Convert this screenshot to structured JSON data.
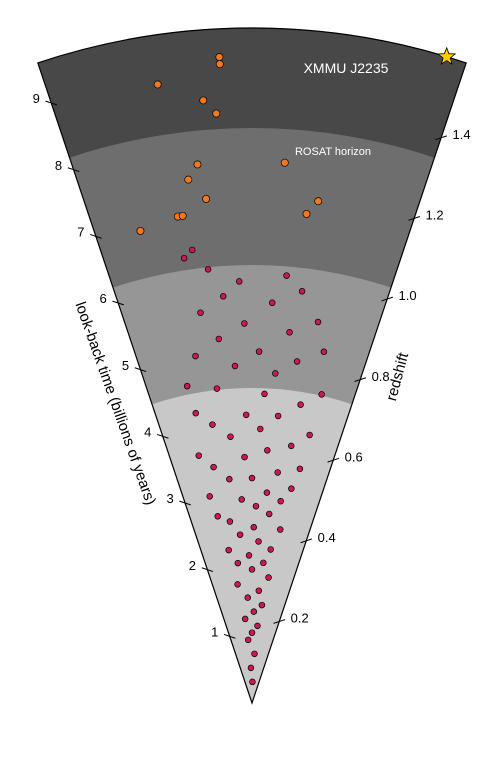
{
  "chart_data": {
    "type": "scatter",
    "title": "",
    "left_axis": {
      "label": "look-back time (billions of years)",
      "ticks": [
        "1",
        "2",
        "3",
        "4",
        "5",
        "6",
        "7",
        "8",
        "9"
      ]
    },
    "right_axis": {
      "label": "redshift",
      "ticks": [
        "0.2",
        "0.4",
        "0.6",
        "0.8",
        "1.0",
        "1.2",
        "1.4"
      ]
    },
    "bands": [
      {
        "name": "band-1",
        "color": "#c8c8c8"
      },
      {
        "name": "band-2",
        "color": "#969696"
      },
      {
        "name": "band-3",
        "color": "#6e6e6e"
      },
      {
        "name": "band-4",
        "color": "#484848"
      }
    ],
    "annotations": {
      "cluster_label": "XMMU J2235",
      "horizon_label": "ROSAT horizon"
    },
    "series": [
      {
        "color": "#cc1a4e",
        "points": [
          {
            "t": 0.3,
            "a": 0.02
          },
          {
            "t": 0.5,
            "a": -0.03
          },
          {
            "t": 0.7,
            "a": 0.05
          },
          {
            "t": 0.9,
            "a": -0.06
          },
          {
            "t": 1.0,
            "a": 0.0
          },
          {
            "t": 1.1,
            "a": 0.07
          },
          {
            "t": 1.2,
            "a": -0.08
          },
          {
            "t": 1.3,
            "a": 0.02
          },
          {
            "t": 1.4,
            "a": 0.1
          },
          {
            "t": 1.5,
            "a": -0.04
          },
          {
            "t": 1.6,
            "a": 0.06
          },
          {
            "t": 1.7,
            "a": -0.12
          },
          {
            "t": 1.8,
            "a": 0.13
          },
          {
            "t": 1.9,
            "a": 0.0
          },
          {
            "t": 2.0,
            "a": -0.1
          },
          {
            "t": 2.0,
            "a": 0.08
          },
          {
            "t": 2.1,
            "a": -0.02
          },
          {
            "t": 2.2,
            "a": 0.12
          },
          {
            "t": 2.2,
            "a": -0.15
          },
          {
            "t": 2.3,
            "a": 0.04
          },
          {
            "t": 2.4,
            "a": -0.07
          },
          {
            "t": 2.5,
            "a": 0.16
          },
          {
            "t": 2.5,
            "a": 0.01
          },
          {
            "t": 2.6,
            "a": -0.12
          },
          {
            "t": 2.7,
            "a": 0.09
          },
          {
            "t": 2.7,
            "a": -0.18
          },
          {
            "t": 2.8,
            "a": 0.02
          },
          {
            "t": 2.9,
            "a": 0.14
          },
          {
            "t": 2.9,
            "a": -0.05
          },
          {
            "t": 3.0,
            "a": -0.2
          },
          {
            "t": 3.0,
            "a": 0.07
          },
          {
            "t": 3.1,
            "a": 0.18
          },
          {
            "t": 3.2,
            "a": -0.1
          },
          {
            "t": 3.2,
            "a": 0.0
          },
          {
            "t": 3.3,
            "a": 0.11
          },
          {
            "t": 3.4,
            "a": -0.16
          },
          {
            "t": 3.4,
            "a": 0.2
          },
          {
            "t": 3.5,
            "a": -0.03
          },
          {
            "t": 3.6,
            "a": 0.06
          },
          {
            "t": 3.6,
            "a": -0.21
          },
          {
            "t": 3.7,
            "a": 0.15
          },
          {
            "t": 3.8,
            "a": -0.08
          },
          {
            "t": 3.9,
            "a": 0.03
          },
          {
            "t": 3.9,
            "a": 0.21
          },
          {
            "t": 4.0,
            "a": -0.14
          },
          {
            "t": 4.1,
            "a": 0.09
          },
          {
            "t": 4.1,
            "a": -0.02
          },
          {
            "t": 4.2,
            "a": -0.19
          },
          {
            "t": 4.3,
            "a": 0.16
          },
          {
            "t": 4.4,
            "a": 0.04
          },
          {
            "t": 4.5,
            "a": -0.11
          },
          {
            "t": 4.5,
            "a": 0.22
          },
          {
            "t": 4.6,
            "a": -0.2
          },
          {
            "t": 4.7,
            "a": 0.07
          },
          {
            "t": 4.8,
            "a": -0.05
          },
          {
            "t": 4.9,
            "a": 0.13
          },
          {
            "t": 5.0,
            "a": -0.16
          },
          {
            "t": 5.0,
            "a": 0.02
          },
          {
            "t": 5.1,
            "a": 0.2
          },
          {
            "t": 5.2,
            "a": -0.09
          },
          {
            "t": 5.3,
            "a": 0.1
          },
          {
            "t": 5.4,
            "a": -0.02
          },
          {
            "t": 5.5,
            "a": 0.17
          },
          {
            "t": 5.6,
            "a": -0.13
          },
          {
            "t": 5.7,
            "a": 0.05
          },
          {
            "t": 5.8,
            "a": -0.07
          },
          {
            "t": 5.9,
            "a": 0.12
          },
          {
            "t": 6.0,
            "a": -0.03
          },
          {
            "t": 6.1,
            "a": 0.08
          },
          {
            "t": 6.2,
            "a": -0.1
          },
          {
            "t": 6.4,
            "a": -0.15
          },
          {
            "t": 6.5,
            "a": -0.13
          }
        ]
      },
      {
        "color": "#f07820",
        "points": [
          {
            "t": 6.9,
            "a": -0.23
          },
          {
            "t": 7.0,
            "a": -0.15
          },
          {
            "t": 7.0,
            "a": -0.14
          },
          {
            "t": 7.0,
            "a": 0.11
          },
          {
            "t": 7.2,
            "a": -0.09
          },
          {
            "t": 7.2,
            "a": 0.13
          },
          {
            "t": 7.5,
            "a": -0.12
          },
          {
            "t": 7.7,
            "a": -0.1
          },
          {
            "t": 7.7,
            "a": 0.06
          },
          {
            "t": 8.4,
            "a": -0.06
          },
          {
            "t": 8.6,
            "a": -0.08
          },
          {
            "t": 8.9,
            "a": -0.15
          },
          {
            "t": 9.1,
            "a": -0.05
          },
          {
            "t": 9.2,
            "a": -0.05
          }
        ]
      },
      {
        "marker": "star",
        "color": "#ffcc00",
        "points": [
          {
            "t": 9.6,
            "a": 0.29
          }
        ]
      }
    ]
  }
}
